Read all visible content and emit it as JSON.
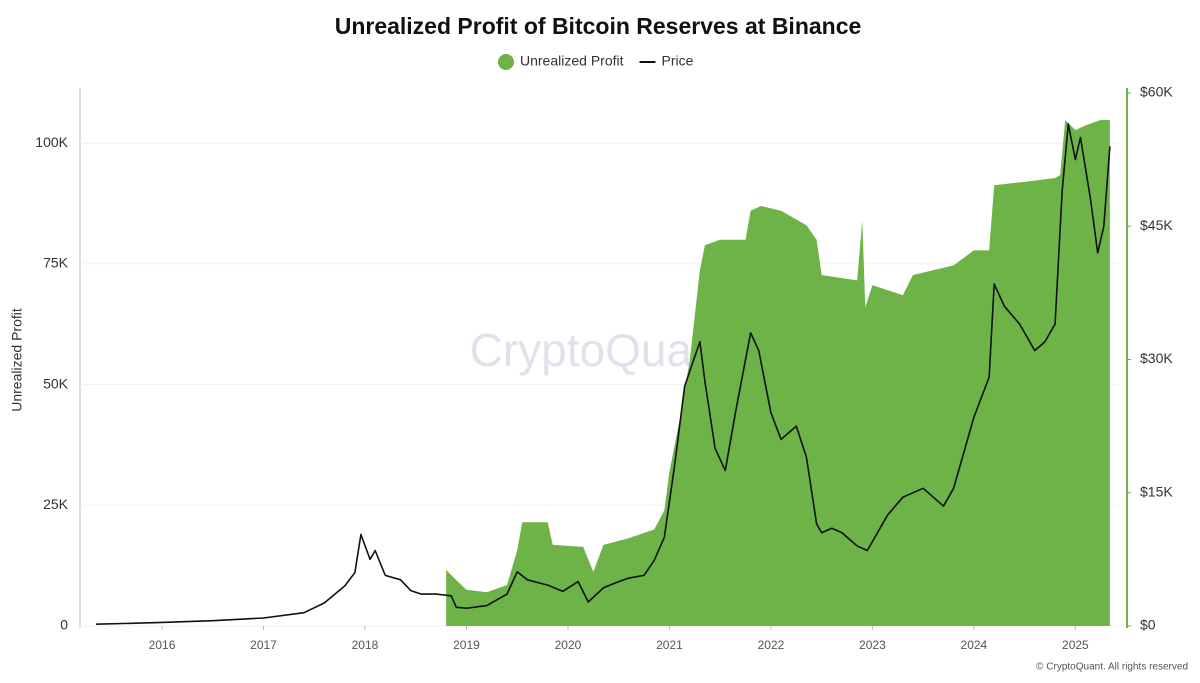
{
  "chart_data": {
    "type": "area",
    "title": "Unrealized Profit of Bitcoin Reserves at Binance",
    "y_label": "Unrealized Profit",
    "watermark": "CryptoQuant",
    "source": "© CryptoQuant. All rights reserved",
    "legend": "top",
    "xlim": [
      2015.31,
      2025.42
    ],
    "xticks": [
      2016,
      2017,
      2018,
      2019,
      2020,
      2021,
      2022,
      2023,
      2024,
      2025
    ],
    "ylim": [
      0,
      110400
    ],
    "yticks": [
      0,
      {
        "value": 25000,
        "label": "25K"
      },
      {
        "value": 50000,
        "label": "50K"
      },
      {
        "value": 75000,
        "label": "75K"
      },
      {
        "value": 100000,
        "label": "100K"
      }
    ],
    "y2lim": [
      0,
      60000
    ],
    "y2ticks": [
      {
        "value": 0,
        "label": "$0"
      },
      {
        "value": 15000,
        "label": "$15K"
      },
      {
        "value": 30000,
        "label": "$30K"
      },
      {
        "value": 45000,
        "label": "$45K"
      },
      {
        "value": 60000,
        "label": "$60K"
      }
    ],
    "series": [
      {
        "name": "Unrealized Profit",
        "type": "area",
        "color": "#6db347",
        "x": [
          2018.8,
          2018.9,
          2019.0,
          2019.2,
          2019.4,
          2019.5,
          2019.55,
          2019.8,
          2019.85,
          2020.15,
          2020.25,
          2020.35,
          2020.6,
          2020.85,
          2020.95,
          2021.0,
          2021.1,
          2021.2,
          2021.3,
          2021.35,
          2021.5,
          2021.75,
          2021.8,
          2021.9,
          2022.1,
          2022.35,
          2022.45,
          2022.5,
          2022.85,
          2022.9,
          2022.93,
          2023.0,
          2023.3,
          2023.4,
          2023.8,
          2024.0,
          2024.15,
          2024.2,
          2024.5,
          2024.8,
          2024.85,
          2024.9,
          2025.0,
          2025.1,
          2025.25,
          2025.34
        ],
        "values": [
          11600,
          9500,
          7500,
          7000,
          8500,
          15700,
          21500,
          21500,
          16800,
          16400,
          11200,
          16800,
          18200,
          20000,
          24000,
          32000,
          42600,
          55000,
          73700,
          78900,
          80000,
          80000,
          86000,
          87000,
          86000,
          83000,
          80000,
          72700,
          71600,
          84000,
          66000,
          70600,
          68500,
          72700,
          74700,
          77800,
          77800,
          91300,
          92000,
          92800,
          93400,
          104800,
          102700,
          103700,
          104800,
          104800
        ]
      },
      {
        "name": "Price",
        "type": "line",
        "color": "#111111",
        "axis": "y2",
        "x": [
          2015.35,
          2016.0,
          2016.5,
          2017.0,
          2017.4,
          2017.6,
          2017.8,
          2017.9,
          2017.96,
          2018.05,
          2018.1,
          2018.2,
          2018.35,
          2018.45,
          2018.55,
          2018.7,
          2018.85,
          2018.9,
          2019.0,
          2019.2,
          2019.4,
          2019.5,
          2019.6,
          2019.8,
          2019.95,
          2020.1,
          2020.2,
          2020.35,
          2020.5,
          2020.6,
          2020.75,
          2020.85,
          2020.95,
          2021.05,
          2021.15,
          2021.3,
          2021.35,
          2021.45,
          2021.55,
          2021.65,
          2021.8,
          2021.88,
          2022.0,
          2022.1,
          2022.25,
          2022.35,
          2022.45,
          2022.5,
          2022.6,
          2022.7,
          2022.85,
          2022.95,
          2023.05,
          2023.15,
          2023.3,
          2023.5,
          2023.6,
          2023.7,
          2023.8,
          2023.9,
          2024.0,
          2024.15,
          2024.2,
          2024.3,
          2024.45,
          2024.6,
          2024.7,
          2024.8,
          2024.87,
          2024.93,
          2025.0,
          2025.05,
          2025.15,
          2025.22,
          2025.28,
          2025.34
        ],
        "values": [
          200,
          400,
          600,
          900,
          1500,
          2600,
          4500,
          6000,
          10300,
          7500,
          8500,
          5700,
          5200,
          4000,
          3600,
          3600,
          3400,
          2100,
          2000,
          2300,
          3600,
          6100,
          5200,
          4600,
          3900,
          5000,
          2700,
          4300,
          5000,
          5400,
          5700,
          7400,
          10000,
          18000,
          27000,
          32000,
          27500,
          20000,
          17500,
          24000,
          33000,
          31000,
          24000,
          21000,
          22500,
          19000,
          11500,
          10500,
          11000,
          10500,
          9000,
          8500,
          10500,
          12500,
          14500,
          15500,
          14500,
          13500,
          15500,
          19500,
          23500,
          28000,
          38500,
          36000,
          34000,
          31000,
          32000,
          34000,
          49000,
          56500,
          52500,
          55000,
          48000,
          42000,
          45000,
          54000
        ]
      }
    ]
  }
}
